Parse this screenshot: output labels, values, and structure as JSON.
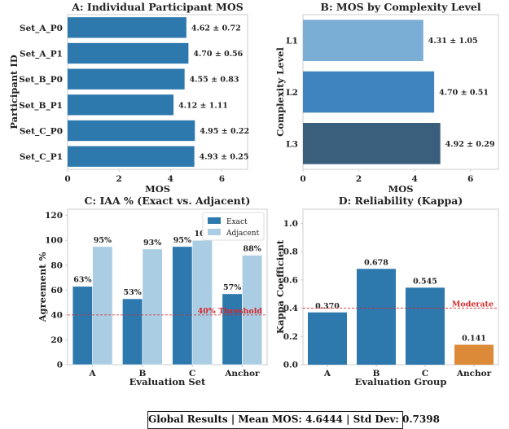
{
  "chart_data": [
    {
      "id": "A",
      "type": "bar",
      "orientation": "horizontal",
      "title": "A: Individual Participant MOS",
      "xlabel": "MOS",
      "ylabel": "Participant ID",
      "xlim": [
        0,
        7
      ],
      "xticks": [
        0,
        2,
        4,
        6
      ],
      "grid": false,
      "categories": [
        "Set_A_P0",
        "Set_A_P1",
        "Set_B_P0",
        "Set_B_P1",
        "Set_C_P0",
        "Set_C_P1"
      ],
      "values": [
        4.62,
        4.7,
        4.55,
        4.12,
        4.95,
        4.93
      ],
      "labels": [
        "4.62 ± 0.72",
        "4.70 ± 0.56",
        "4.55 ± 0.83",
        "4.12 ± 1.11",
        "4.95 ± 0.22",
        "4.93 ± 0.25"
      ],
      "bar_colors": [
        "#2d79ae",
        "#2d79ae",
        "#2d79ae",
        "#2d79ae",
        "#2d79ae",
        "#2d79ae"
      ]
    },
    {
      "id": "B",
      "type": "bar",
      "orientation": "horizontal",
      "title": "B: MOS by Complexity Level",
      "xlabel": "MOS",
      "ylabel": "Complexity Level",
      "xlim": [
        0,
        7
      ],
      "xticks": [
        0,
        2,
        4,
        6
      ],
      "grid": false,
      "categories": [
        "L1",
        "L2",
        "L3"
      ],
      "values": [
        4.31,
        4.7,
        4.92
      ],
      "labels": [
        "4.31 ± 1.05",
        "4.70 ± 0.51",
        "4.92 ± 0.29"
      ],
      "bar_colors": [
        "#7aaed4",
        "#3f84be",
        "#3a5f7c"
      ]
    },
    {
      "id": "C",
      "type": "bar",
      "orientation": "vertical",
      "title": "C: IAA % (Exact vs. Adjacent)",
      "xlabel": "Evaluation Set",
      "ylabel": "Agreement %",
      "ylim": [
        0,
        125
      ],
      "yticks": [
        0,
        20,
        40,
        60,
        80,
        100,
        120
      ],
      "grid": false,
      "categories": [
        "A",
        "B",
        "C",
        "Anchor"
      ],
      "series": [
        {
          "name": "Exact",
          "color": "#2d79ae",
          "values": [
            63,
            53,
            95,
            57
          ],
          "labels": [
            "63%",
            "53%",
            "95%",
            "57%"
          ]
        },
        {
          "name": "Adjacent",
          "color": "#aacde3",
          "values": [
            95,
            93,
            100,
            88
          ],
          "labels": [
            "95%",
            "93%",
            "100",
            "88%"
          ]
        }
      ],
      "legend": "top-right",
      "threshold": {
        "value": 40,
        "label": "40% Threshold",
        "color": "#d62728"
      }
    },
    {
      "id": "D",
      "type": "bar",
      "orientation": "vertical",
      "title": "D: Reliability (Kappa)",
      "xlabel": "Evaluation Group",
      "ylabel": "Kappa Coefficient",
      "ylim": [
        0,
        1.1
      ],
      "yticks": [
        0.0,
        0.2,
        0.4,
        0.6,
        0.8,
        1.0
      ],
      "grid": false,
      "categories": [
        "A",
        "B",
        "C",
        "Anchor"
      ],
      "values": [
        0.37,
        0.678,
        0.545,
        0.141
      ],
      "labels": [
        "0.370",
        "0.678",
        "0.545",
        "0.141"
      ],
      "bar_colors": [
        "#2d79ae",
        "#2d79ae",
        "#2d79ae",
        "#dd8a38"
      ],
      "threshold": {
        "value": 0.4,
        "label": "Moderate",
        "color": "#d62728"
      }
    }
  ],
  "footer": {
    "text": "Global Results | Mean MOS: 4.6444 | Std Dev: 0.7398"
  }
}
